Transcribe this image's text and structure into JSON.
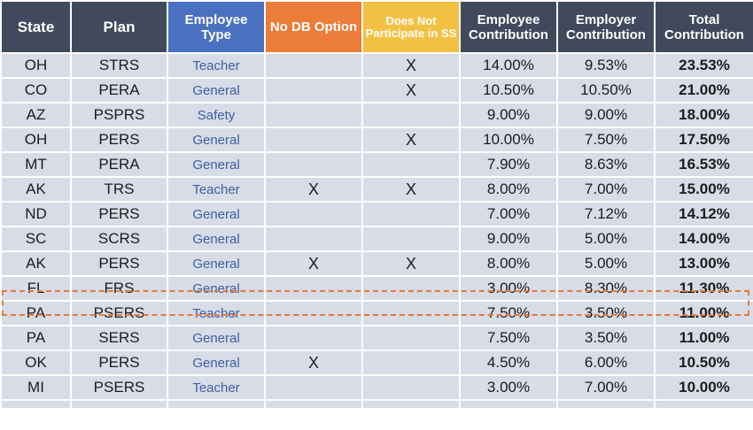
{
  "headers": {
    "state": "State",
    "plan": "Plan",
    "employee_type": "Employee Type",
    "no_db": "No DB Option",
    "no_ss": "Does Not Participate in SS",
    "employee_contribution": "Employee Contribution",
    "employer_contribution": "Employer Contribution",
    "total": "Total Contribution"
  },
  "colors": {
    "header_dark": "#404a5c",
    "header_blue": "#4a71c0",
    "header_orange": "#ec7c3a",
    "header_yellow": "#f3c142",
    "row_bg": "#d7dce6",
    "type_text": "#3e5fa3",
    "highlight": "#e6793a"
  },
  "highlighted_row": "FL FRS",
  "rows": [
    {
      "state": "OH",
      "plan": "STRS",
      "type": "Teacher",
      "no_db": "",
      "no_ss": "X",
      "employee": "14.00%",
      "employer": "9.53%",
      "total": "23.53%"
    },
    {
      "state": "CO",
      "plan": "PERA",
      "type": "General",
      "no_db": "",
      "no_ss": "X",
      "employee": "10.50%",
      "employer": "10.50%",
      "total": "21.00%"
    },
    {
      "state": "AZ",
      "plan": "PSPRS",
      "type": "Safety",
      "no_db": "",
      "no_ss": "",
      "employee": "9.00%",
      "employer": "9.00%",
      "total": "18.00%"
    },
    {
      "state": "OH",
      "plan": "PERS",
      "type": "General",
      "no_db": "",
      "no_ss": "X",
      "employee": "10.00%",
      "employer": "7.50%",
      "total": "17.50%"
    },
    {
      "state": "MT",
      "plan": "PERA",
      "type": "General",
      "no_db": "",
      "no_ss": "",
      "employee": "7.90%",
      "employer": "8.63%",
      "total": "16.53%"
    },
    {
      "state": "AK",
      "plan": "TRS",
      "type": "Teacher",
      "no_db": "X",
      "no_ss": "X",
      "employee": "8.00%",
      "employer": "7.00%",
      "total": "15.00%"
    },
    {
      "state": "ND",
      "plan": "PERS",
      "type": "General",
      "no_db": "",
      "no_ss": "",
      "employee": "7.00%",
      "employer": "7.12%",
      "total": "14.12%"
    },
    {
      "state": "SC",
      "plan": "SCRS",
      "type": "General",
      "no_db": "",
      "no_ss": "",
      "employee": "9.00%",
      "employer": "5.00%",
      "total": "14.00%"
    },
    {
      "state": "AK",
      "plan": "PERS",
      "type": "General",
      "no_db": "X",
      "no_ss": "X",
      "employee": "8.00%",
      "employer": "5.00%",
      "total": "13.00%"
    },
    {
      "state": "FL",
      "plan": "FRS",
      "type": "General",
      "no_db": "",
      "no_ss": "",
      "employee": "3.00%",
      "employer": "8.30%",
      "total": "11.30%"
    },
    {
      "state": "PA",
      "plan": "PSERS",
      "type": "Teacher",
      "no_db": "",
      "no_ss": "",
      "employee": "7.50%",
      "employer": "3.50%",
      "total": "11.00%"
    },
    {
      "state": "PA",
      "plan": "SERS",
      "type": "General",
      "no_db": "",
      "no_ss": "",
      "employee": "7.50%",
      "employer": "3.50%",
      "total": "11.00%"
    },
    {
      "state": "OK",
      "plan": "PERS",
      "type": "General",
      "no_db": "X",
      "no_ss": "",
      "employee": "4.50%",
      "employer": "6.00%",
      "total": "10.50%"
    },
    {
      "state": "MI",
      "plan": "PSERS",
      "type": "Teacher",
      "no_db": "",
      "no_ss": "",
      "employee": "3.00%",
      "employer": "7.00%",
      "total": "10.00%"
    }
  ]
}
